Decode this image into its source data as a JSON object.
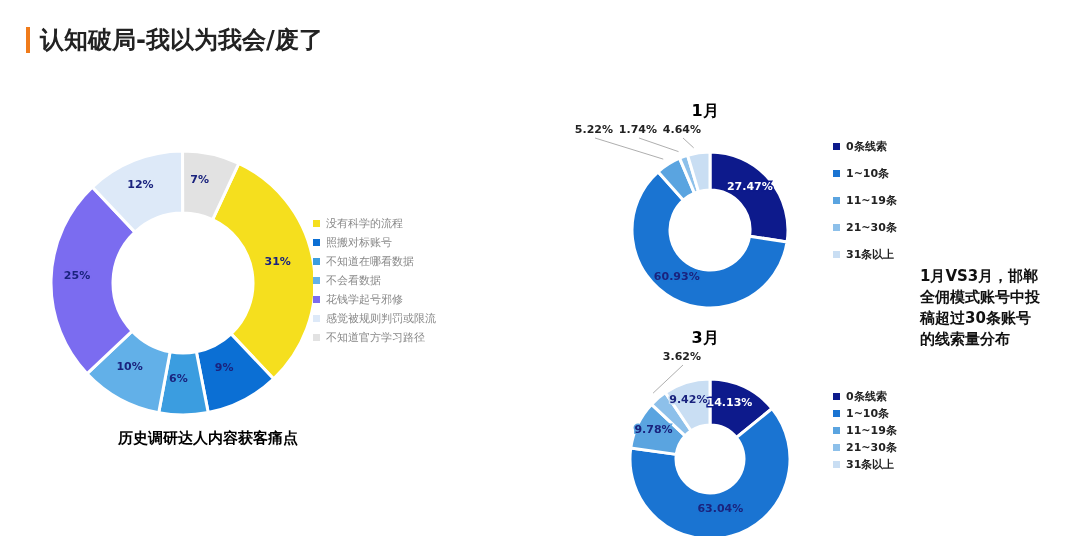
{
  "chart_data": [
    {
      "type": "donut",
      "title": "历史调研达人内容获客痛点",
      "annotations": [
        "认知破局-我以为我会/废了"
      ],
      "legend": "right",
      "categories": [
        "没有科学的流程",
        "照搬对标账号",
        "不知道在哪看数据",
        "不会看数据",
        "花钱学起号邪修",
        "感觉被规则判罚或限流",
        "不知道官方学习路径"
      ],
      "values": [
        31,
        9,
        6,
        10,
        25,
        12,
        7
      ],
      "colors": [
        "#f5df1e",
        "#0b6fd4",
        "#3b9de0",
        "#62b0e8",
        "#7b6cf0",
        "#dde9f8",
        "#e2e2e2"
      ],
      "value_labels": [
        "31%",
        "9%",
        "6%",
        "10%",
        "25%",
        "12%",
        "7%"
      ]
    },
    {
      "type": "donut",
      "title": "1月",
      "annotations": [
        "1月VS3月，邯郸全佣模式账号中投稿超过30条账号的线索量分布"
      ],
      "legend": "right",
      "categories": [
        "0条线索",
        "1~10条",
        "11~19条",
        "21~30条",
        "31条以上"
      ],
      "values": [
        27.47,
        60.93,
        5.22,
        1.74,
        4.64
      ],
      "colors": [
        "#0d1a8c",
        "#1a74d2",
        "#5aa4e0",
        "#8dc0ea",
        "#c9def3"
      ],
      "value_labels": [
        "27.47%",
        "60.93%",
        "5.22%",
        "1.74%",
        "4.64%"
      ]
    },
    {
      "type": "donut",
      "title": "3月",
      "legend": "right",
      "categories": [
        "0条线索",
        "1~10条",
        "11~19条",
        "21~30条",
        "31条以上"
      ],
      "values": [
        14.13,
        63.04,
        9.78,
        3.62,
        9.42
      ],
      "colors": [
        "#0d1a8c",
        "#1a74d2",
        "#5aa4e0",
        "#8dc0ea",
        "#c9def3"
      ],
      "value_labels": [
        "14.13%",
        "63.04%",
        "9.78%",
        "3.62%",
        "9.42%"
      ]
    }
  ]
}
